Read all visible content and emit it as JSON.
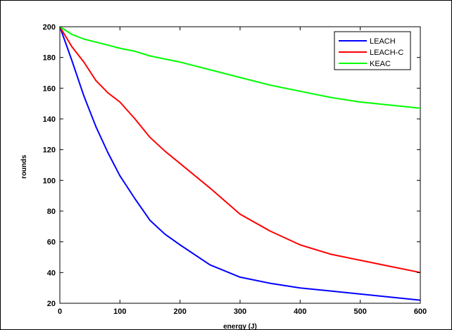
{
  "chart_data": {
    "type": "line",
    "title": "",
    "xlabel": "energy (J)",
    "ylabel": "rounds",
    "xlim": [
      0,
      600
    ],
    "ylim": [
      20,
      200
    ],
    "xticks": [
      0,
      100,
      200,
      300,
      400,
      500,
      600
    ],
    "yticks": [
      20,
      40,
      60,
      80,
      100,
      120,
      140,
      160,
      180,
      200
    ],
    "grid": false,
    "legend_position": "top-right",
    "x": [
      0,
      20,
      40,
      60,
      80,
      100,
      125,
      150,
      175,
      200,
      250,
      300,
      350,
      400,
      450,
      500,
      550,
      600
    ],
    "series": [
      {
        "name": "LEACH",
        "color": "#0000ff",
        "values": [
          200,
          178,
          155,
          135,
          118,
          103,
          88,
          74,
          65,
          58,
          45,
          37,
          33,
          30,
          28,
          26,
          24,
          22
        ]
      },
      {
        "name": "LEACH-C",
        "color": "#ff0000",
        "values": [
          200,
          187,
          177,
          165,
          157,
          151,
          140,
          128,
          119,
          111,
          95,
          78,
          67,
          58,
          52,
          48,
          44,
          40
        ]
      },
      {
        "name": "KEAC",
        "color": "#00ff00",
        "values": [
          200,
          195,
          192,
          190,
          188,
          186,
          184,
          181,
          179,
          177,
          172,
          167,
          162,
          158,
          154,
          151,
          149,
          147
        ]
      }
    ]
  }
}
